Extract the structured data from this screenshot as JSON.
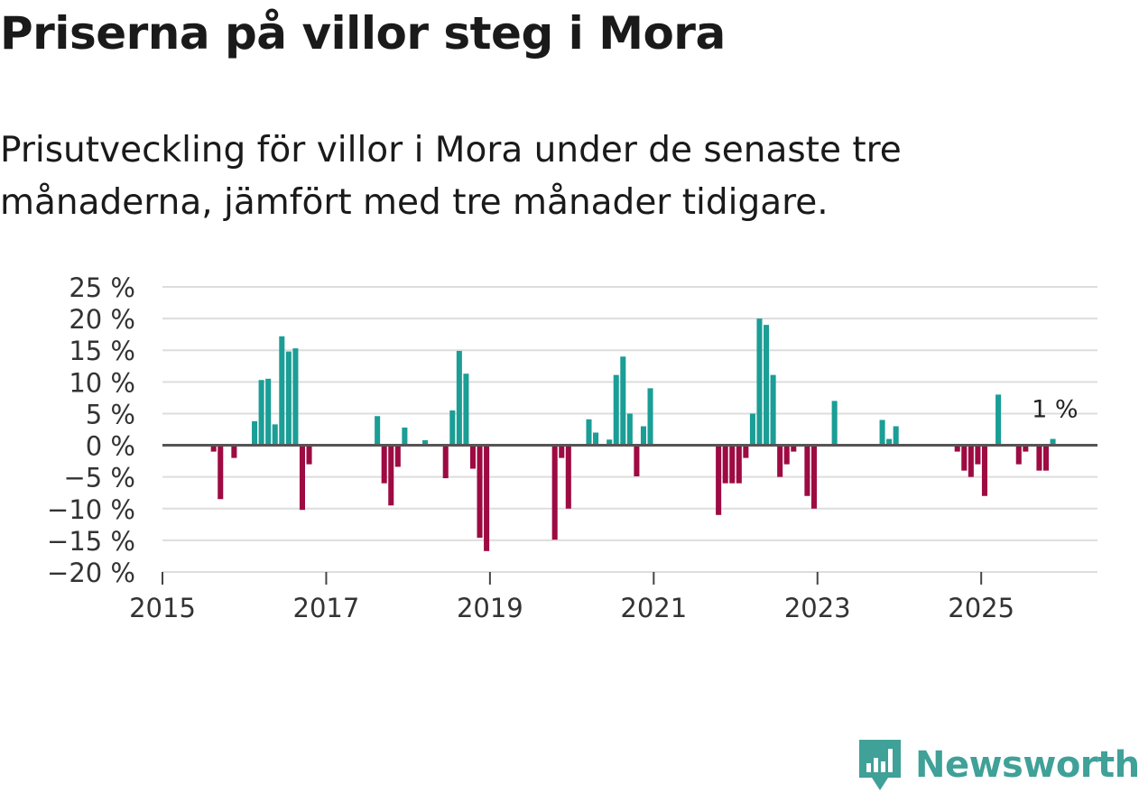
{
  "title": "Priserna på villor steg i Mora",
  "subtitle": "Prisutveckling för villor i Mora under de senaste tre månaderna, jämfört med tre månader tidigare.",
  "brand": {
    "name": "Newsworthy",
    "logo_icon": "newsworthy-logo-icon"
  },
  "colors": {
    "positive": "#1a9e96",
    "negative": "#9e0a42",
    "grid": "#dddddd",
    "zero_line": "#555555"
  },
  "chart_data": {
    "type": "bar",
    "title": "Priserna på villor steg i Mora",
    "xlabel": "",
    "ylabel": "",
    "ylim": [
      -20,
      25
    ],
    "yticks": [
      25,
      20,
      15,
      10,
      5,
      0,
      -5,
      -10,
      -15,
      -20
    ],
    "ytick_labels": [
      "25 %",
      "20 %",
      "15 %",
      "10 %",
      "5 %",
      "0 %",
      "−5 %",
      "−10 %",
      "−15 %",
      "−20 %"
    ],
    "xlim": [
      2015.0,
      2026.42
    ],
    "xticks": [
      2015,
      2017,
      2019,
      2021,
      2023,
      2025
    ],
    "xtick_labels": [
      "2015",
      "2017",
      "2019",
      "2021",
      "2023",
      "2025"
    ],
    "annotation": {
      "label": "1 %",
      "x": "2025-11",
      "y": 1
    },
    "series": [
      {
        "name": "Prisutveckling",
        "unit": "%",
        "points": [
          {
            "x": "2015-08",
            "y": -1
          },
          {
            "x": "2015-09",
            "y": -8.5
          },
          {
            "x": "2015-11",
            "y": -2
          },
          {
            "x": "2016-02",
            "y": 3.8
          },
          {
            "x": "2016-03",
            "y": 10.3
          },
          {
            "x": "2016-04",
            "y": 10.5
          },
          {
            "x": "2016-05",
            "y": 3.3
          },
          {
            "x": "2016-06",
            "y": 17.2
          },
          {
            "x": "2016-07",
            "y": 14.8
          },
          {
            "x": "2016-08",
            "y": 15.3
          },
          {
            "x": "2016-09",
            "y": -10.2
          },
          {
            "x": "2016-10",
            "y": -3
          },
          {
            "x": "2017-08",
            "y": 4.6
          },
          {
            "x": "2017-09",
            "y": -6
          },
          {
            "x": "2017-10",
            "y": -9.5
          },
          {
            "x": "2017-11",
            "y": -3.4
          },
          {
            "x": "2017-12",
            "y": 2.8
          },
          {
            "x": "2018-03",
            "y": 0.8
          },
          {
            "x": "2018-06",
            "y": -5.2
          },
          {
            "x": "2018-07",
            "y": 5.5
          },
          {
            "x": "2018-08",
            "y": 14.9
          },
          {
            "x": "2018-09",
            "y": 11.3
          },
          {
            "x": "2018-10",
            "y": -3.7
          },
          {
            "x": "2018-11",
            "y": -14.6
          },
          {
            "x": "2018-12",
            "y": -16.7
          },
          {
            "x": "2019-10",
            "y": -14.9
          },
          {
            "x": "2019-11",
            "y": -2
          },
          {
            "x": "2019-12",
            "y": -10
          },
          {
            "x": "2020-03",
            "y": 4.1
          },
          {
            "x": "2020-04",
            "y": 2
          },
          {
            "x": "2020-06",
            "y": 0.9
          },
          {
            "x": "2020-07",
            "y": 11.1
          },
          {
            "x": "2020-08",
            "y": 14
          },
          {
            "x": "2020-09",
            "y": 5
          },
          {
            "x": "2020-10",
            "y": -4.9
          },
          {
            "x": "2020-11",
            "y": 3
          },
          {
            "x": "2020-12",
            "y": 9
          },
          {
            "x": "2021-10",
            "y": -11
          },
          {
            "x": "2021-11",
            "y": -6
          },
          {
            "x": "2021-12",
            "y": -6
          },
          {
            "x": "2022-01",
            "y": -6
          },
          {
            "x": "2022-02",
            "y": -2
          },
          {
            "x": "2022-03",
            "y": 5
          },
          {
            "x": "2022-04",
            "y": 20
          },
          {
            "x": "2022-05",
            "y": 19
          },
          {
            "x": "2022-06",
            "y": 11.1
          },
          {
            "x": "2022-07",
            "y": -5
          },
          {
            "x": "2022-08",
            "y": -3
          },
          {
            "x": "2022-09",
            "y": -1
          },
          {
            "x": "2022-11",
            "y": -8
          },
          {
            "x": "2022-12",
            "y": -10
          },
          {
            "x": "2023-03",
            "y": 7
          },
          {
            "x": "2023-10",
            "y": 4
          },
          {
            "x": "2023-11",
            "y": 1
          },
          {
            "x": "2023-12",
            "y": 3
          },
          {
            "x": "2024-09",
            "y": -1
          },
          {
            "x": "2024-10",
            "y": -4
          },
          {
            "x": "2024-11",
            "y": -5
          },
          {
            "x": "2024-12",
            "y": -3
          },
          {
            "x": "2025-01",
            "y": -8
          },
          {
            "x": "2025-03",
            "y": 8
          },
          {
            "x": "2025-06",
            "y": -3
          },
          {
            "x": "2025-07",
            "y": -1
          },
          {
            "x": "2025-09",
            "y": -4
          },
          {
            "x": "2025-10",
            "y": -4
          },
          {
            "x": "2025-11",
            "y": 1
          }
        ]
      }
    ]
  }
}
